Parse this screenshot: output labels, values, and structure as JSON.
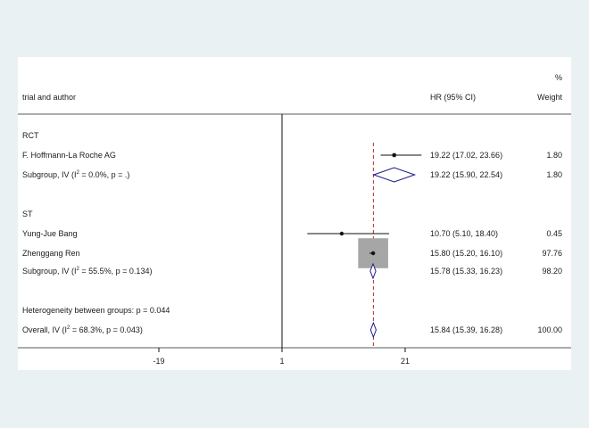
{
  "chart_data": {
    "type": "forest",
    "headers": {
      "study": "trial and author",
      "effect": "HR (95% CI)",
      "weight_pct": "%",
      "weight": "Weight"
    },
    "groups": [
      {
        "name": "RCT",
        "studies": [
          {
            "label": "F. Hoffmann-La Roche AG",
            "hr": 19.22,
            "lo": 17.02,
            "hi": 23.66,
            "ci_text": "19.22 (17.02, 23.66)",
            "weight": "1.80"
          }
        ],
        "subgroup": {
          "label": "Subgroup, IV (I² = 0.0%, p = .)",
          "hr": 19.22,
          "lo": 15.9,
          "hi": 22.54,
          "ci_text": "19.22 (15.90, 22.54)",
          "weight": "1.80"
        }
      },
      {
        "name": "ST",
        "studies": [
          {
            "label": "Yung-Jue Bang",
            "hr": 10.7,
            "lo": 5.1,
            "hi": 18.4,
            "ci_text": "10.70 (5.10, 18.40)",
            "weight": "0.45"
          },
          {
            "label": "Zhenggang Ren",
            "hr": 15.8,
            "lo": 15.2,
            "hi": 16.1,
            "ci_text": "15.80 (15.20, 16.10)",
            "weight": "97.76"
          }
        ],
        "subgroup": {
          "label": "Subgroup, IV (I² = 55.5%, p = 0.134)",
          "hr": 15.78,
          "lo": 15.33,
          "hi": 16.23,
          "ci_text": "15.78 (15.33, 16.23)",
          "weight": "98.20"
        }
      }
    ],
    "heterogeneity": "Heterogeneity between groups: p = 0.044",
    "overall": {
      "label": "Overall, IV (I² = 68.3%, p = 0.043)",
      "hr": 15.84,
      "lo": 15.39,
      "hi": 16.28,
      "ci_text": "15.84 (15.39, 16.28)",
      "weight": "100.00"
    },
    "null_line": 1,
    "x_ticks": [
      "-19",
      "1",
      "21"
    ],
    "xlim": [
      -39,
      41
    ],
    "colors": {
      "background": "#eaf1f3",
      "panel": "#ffffff",
      "diamond": "#1a1a8c",
      "overall_line": "#b03030",
      "weight_box": "#a6a6a6"
    }
  }
}
